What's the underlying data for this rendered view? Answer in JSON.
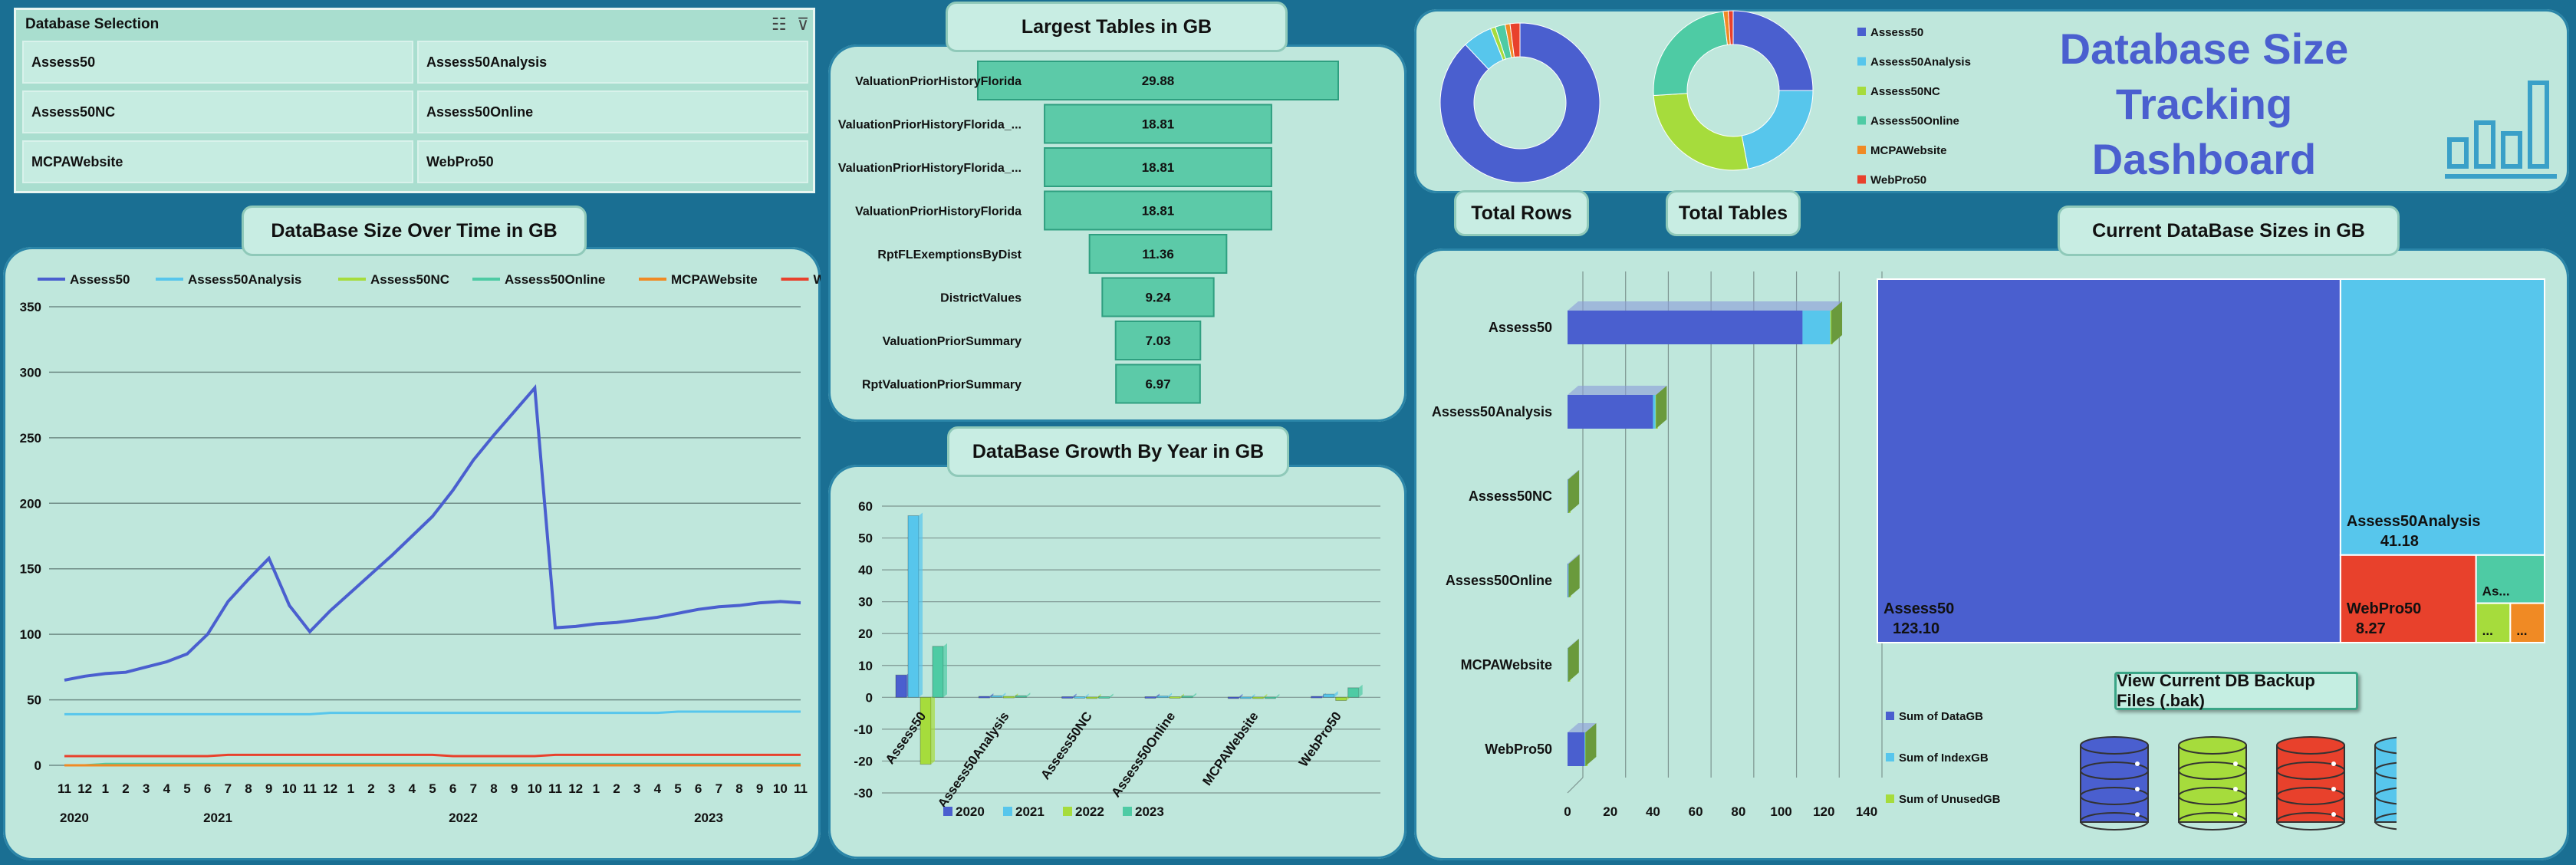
{
  "slicer": {
    "title": "Database Selection",
    "items": [
      "Assess50",
      "Assess50Analysis",
      "Assess50NC",
      "Assess50Online",
      "MCPAWebsite",
      "WebPro50"
    ]
  },
  "titles": {
    "largest": "Largest Tables in GB",
    "over_time": "DataBase Size Over Time in GB",
    "growth": "DataBase Growth By Year in  GB",
    "current": "Current DataBase Sizes in GB",
    "total_rows": "Total Rows",
    "total_tables": "Total Tables",
    "dashboard_line1": "Database Size Tracking",
    "dashboard_line2": "Dashboard"
  },
  "backup_button": "View Current DB Backup Files (.bak)",
  "colors": {
    "Assess50": "#4a5fcf",
    "Assess50Analysis": "#57c6ec",
    "Assess50NC": "#a6dc3c",
    "Assess50Online": "#4ecba4",
    "MCPAWebsite": "#f08a24",
    "WebPro50": "#e8412c"
  },
  "donut_legend": [
    "Assess50",
    "Assess50Analysis",
    "Assess50NC",
    "Assess50Online",
    "MCPAWebsite",
    "WebPro50"
  ],
  "chart_data": [
    {
      "id": "largest_tables",
      "type": "bar",
      "title": "Largest Tables in GB",
      "categories": [
        "ValuationPriorHistoryFlorida",
        "ValuationPriorHistoryFlorida_...",
        "ValuationPriorHistoryFlorida_...",
        "ValuationPriorHistoryFlorida",
        "RptFLExemptionsByDist",
        "DistrictValues",
        "ValuationPriorSummary",
        "RptValuationPriorSummary"
      ],
      "values": [
        29.88,
        18.81,
        18.81,
        18.81,
        11.36,
        9.24,
        7.03,
        6.97
      ],
      "value_labels": [
        "29.88",
        "18.81",
        "18.81",
        "18.81",
        "11.36",
        "9.24",
        "7.03",
        "6.97"
      ]
    },
    {
      "id": "size_over_time",
      "type": "line",
      "title": "DataBase Size Over Time in GB",
      "month_labels": [
        "11",
        "12",
        "1",
        "2",
        "3",
        "4",
        "5",
        "6",
        "7",
        "8",
        "9",
        "10",
        "11",
        "12",
        "1",
        "2",
        "3",
        "4",
        "5",
        "6",
        "7",
        "8",
        "9",
        "10",
        "11",
        "12",
        "1",
        "2",
        "3",
        "4",
        "5",
        "6",
        "7",
        "8",
        "9",
        "10",
        "11"
      ],
      "year_labels": [
        "2020",
        "2021",
        "2022",
        "2023"
      ],
      "ylim": [
        0,
        350
      ],
      "yticks": [
        0,
        50,
        100,
        150,
        200,
        250,
        300,
        350
      ],
      "series": [
        {
          "name": "Assess50",
          "values": [
            65,
            68,
            70,
            71,
            75,
            79,
            85,
            100,
            125,
            142,
            158,
            122,
            102,
            118,
            132,
            146,
            160,
            175,
            190,
            210,
            233,
            252,
            270,
            288,
            105,
            106,
            108,
            109,
            111,
            113,
            116,
            119,
            121,
            122,
            124,
            125,
            124
          ]
        },
        {
          "name": "Assess50Analysis",
          "values": [
            39,
            39,
            39,
            39,
            39,
            39,
            39,
            39,
            39,
            39,
            39,
            39,
            39,
            40,
            40,
            40,
            40,
            40,
            40,
            40,
            40,
            40,
            40,
            40,
            40,
            40,
            40,
            40,
            40,
            40,
            41,
            41,
            41,
            41,
            41,
            41,
            41
          ]
        },
        {
          "name": "Assess50NC",
          "values": [
            0,
            0,
            0,
            0,
            0,
            0,
            0,
            0,
            0,
            0,
            0,
            0,
            0,
            0,
            0,
            0,
            0,
            0,
            0,
            0,
            0,
            0,
            0,
            0,
            0,
            0,
            0,
            0,
            0,
            0,
            0,
            0,
            0,
            0,
            0,
            0,
            0
          ]
        },
        {
          "name": "Assess50Online",
          "values": [
            0,
            0,
            1,
            1,
            1,
            1,
            1,
            1,
            1,
            1,
            1,
            1,
            1,
            1,
            1,
            1,
            1,
            1,
            1,
            1,
            1,
            1,
            1,
            1,
            1,
            1,
            1,
            1,
            1,
            1,
            1,
            1,
            1,
            1,
            1,
            1,
            1
          ]
        },
        {
          "name": "MCPAWebsite",
          "values": [
            0,
            0,
            0,
            0,
            0,
            0,
            0,
            0,
            0,
            0,
            0,
            0,
            0,
            0,
            0,
            0,
            0,
            0,
            0,
            0,
            0,
            0,
            0,
            0,
            0,
            0,
            0,
            0,
            0,
            0,
            0,
            0,
            0,
            0,
            0,
            0,
            0
          ]
        },
        {
          "name": "WebPro50",
          "values": [
            7,
            7,
            7,
            7,
            7,
            7,
            7,
            7,
            8,
            8,
            8,
            8,
            8,
            8,
            8,
            8,
            8,
            8,
            8,
            7,
            7,
            7,
            7,
            7,
            8,
            8,
            8,
            8,
            8,
            8,
            8,
            8,
            8,
            8,
            8,
            8,
            8
          ]
        }
      ]
    },
    {
      "id": "growth_by_year",
      "type": "bar",
      "title": "DataBase Growth By Year in  GB",
      "categories": [
        "Assess50",
        "Assess50Analysis",
        "Assess50NC",
        "Assess50Online",
        "MCPAWebsite",
        "WebPro50"
      ],
      "ylim": [
        -30,
        60
      ],
      "yticks": [
        -30,
        -20,
        -10,
        0,
        10,
        20,
        30,
        40,
        50,
        60
      ],
      "series": [
        {
          "name": "2020",
          "values": [
            7,
            0.3,
            0.2,
            0.2,
            0.1,
            0.3
          ]
        },
        {
          "name": "2021",
          "values": [
            57,
            0.5,
            0.2,
            0.4,
            0.1,
            1
          ]
        },
        {
          "name": "2022",
          "values": [
            -21,
            0.3,
            0.1,
            0.2,
            0.1,
            -1
          ]
        },
        {
          "name": "2023",
          "values": [
            16,
            0.5,
            0.2,
            0.4,
            0.1,
            3
          ]
        }
      ]
    },
    {
      "id": "total_rows",
      "type": "pie",
      "title": "Total Rows",
      "categories": [
        "Assess50",
        "Assess50Analysis",
        "Assess50NC",
        "Assess50Online",
        "MCPAWebsite",
        "WebPro50"
      ],
      "values": [
        88,
        6,
        1,
        2,
        1,
        2
      ]
    },
    {
      "id": "total_tables",
      "type": "pie",
      "title": "Total Tables",
      "categories": [
        "Assess50",
        "Assess50Analysis",
        "Assess50NC",
        "Assess50Online",
        "MCPAWebsite",
        "WebPro50"
      ],
      "values": [
        25,
        22,
        27,
        24,
        1,
        1
      ]
    },
    {
      "id": "current_sizes_bar",
      "type": "bar",
      "title": "Current DataBase Sizes in GB",
      "categories": [
        "Assess50",
        "Assess50Analysis",
        "Assess50NC",
        "Assess50Online",
        "MCPAWebsite",
        "WebPro50"
      ],
      "xlim": [
        0,
        140
      ],
      "xticks": [
        0,
        20,
        40,
        60,
        80,
        100,
        120,
        140
      ],
      "series": [
        {
          "name": "Sum of DataGB",
          "values": [
            110,
            40,
            0.2,
            0.3,
            0.1,
            8
          ]
        },
        {
          "name": "Sum of IndexGB",
          "values": [
            13,
            1.2,
            0.1,
            0.2,
            0.1,
            0.3
          ]
        },
        {
          "name": "Sum of UnusedGB",
          "values": [
            0.5,
            0.2,
            0.1,
            0.1,
            0.1,
            0.1
          ]
        }
      ]
    },
    {
      "id": "current_sizes_treemap",
      "type": "treemap",
      "categories": [
        "Assess50",
        "Assess50Analysis",
        "WebPro50",
        "Assess50Online",
        "Assess50NC",
        "MCPAWebsite"
      ],
      "values": [
        123.1,
        41.18,
        8.27,
        3.0,
        1.0,
        0.8
      ],
      "labels": [
        "Assess50",
        "Assess50Analysis",
        "WebPro50",
        "As...",
        "...",
        "..."
      ],
      "value_labels": [
        "123.10",
        "41.18",
        "8.27",
        "",
        "",
        ""
      ]
    }
  ]
}
